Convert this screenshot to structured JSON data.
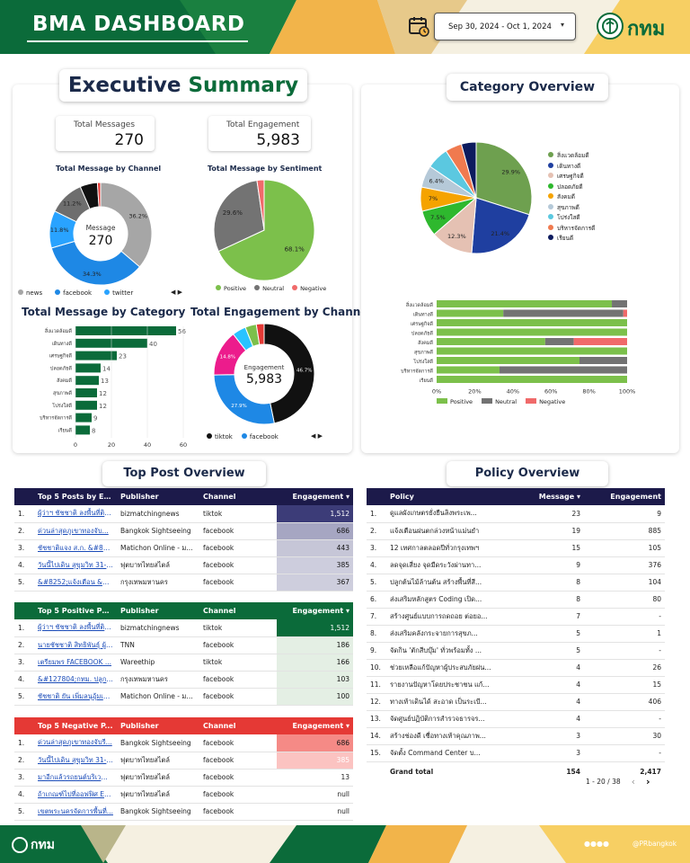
{
  "header": {
    "title": "BMA DASHBOARD",
    "date_range": "Sep 30, 2024 - Oct 1, 2024",
    "logo_text": "กทม"
  },
  "exec": {
    "title_a": "Executive",
    "title_b": "Summary",
    "kpi1": {
      "label": "Total Messages",
      "value": "270"
    },
    "kpi2": {
      "label": "Total Engagement",
      "value": "5,983"
    }
  },
  "donut1": {
    "title": "Total Message by Channel",
    "center_label": "Message",
    "center_value": "270",
    "slices": [
      {
        "name": "news",
        "value": 36.2,
        "color": "#a6a6a6",
        "label": "36.2%"
      },
      {
        "name": "facebook",
        "value": 34.3,
        "color": "#1e88e5",
        "label": "34.3%"
      },
      {
        "name": "twitter",
        "value": 11.8,
        "color": "#29a3ff",
        "label": "11.8%"
      },
      {
        "name": "other1",
        "value": 11.2,
        "color": "#6e6e6e",
        "label": "11.2%"
      },
      {
        "name": "other2",
        "value": 5.5,
        "color": "#111111",
        "label": ""
      },
      {
        "name": "other3",
        "value": 1.0,
        "color": "#e53935",
        "label": ""
      }
    ],
    "legend": [
      "news",
      "facebook",
      "twitter"
    ]
  },
  "pie1": {
    "title": "Total Message by Sentiment",
    "slices": [
      {
        "name": "Positive",
        "value": 68.1,
        "color": "#7cc04b",
        "label": "68.1%"
      },
      {
        "name": "Neutral",
        "value": 29.6,
        "color": "#737373",
        "label": "29.6%"
      },
      {
        "name": "Negative",
        "value": 2.3,
        "color": "#f06a6a",
        "label": ""
      }
    ]
  },
  "bar1": {
    "title": "Total Message by Category",
    "categories": [
      "สิ่งแวดล้อมดี",
      "เดินทางดี",
      "เศรษฐกิจดี",
      "ปลอดภัยดี",
      "สังคมดี",
      "สุขภาพดี",
      "โปร่งใสดี",
      "บริหารจัดการดี",
      "เรียนดี"
    ],
    "values": [
      56,
      40,
      23,
      14,
      13,
      12,
      12,
      9,
      8
    ],
    "ticks": [
      "0",
      "20",
      "40",
      "60"
    ],
    "xmax": 60
  },
  "donut2": {
    "title": "Total Engagement by Channel",
    "center_label": "Engagement",
    "center_value": "5,983",
    "slices": [
      {
        "name": "tiktok",
        "value": 46.7,
        "color": "#111111",
        "label": "46.7%"
      },
      {
        "name": "facebook",
        "value": 27.9,
        "color": "#1e88e5",
        "label": "27.9%"
      },
      {
        "name": "other1",
        "value": 14.8,
        "color": "#ec1c8c",
        "label": "14.8%"
      },
      {
        "name": "other2",
        "value": 4.4,
        "color": "#29c3ff",
        "label": ""
      },
      {
        "name": "other3",
        "value": 3.6,
        "color": "#7cc04b",
        "label": ""
      },
      {
        "name": "other4",
        "value": 2.5,
        "color": "#e53935",
        "label": ""
      }
    ],
    "legend": [
      "tiktok",
      "facebook"
    ]
  },
  "cat": {
    "title": "Category Overview",
    "pie": [
      {
        "name": "สิ่งแวดล้อมดี",
        "value": 29.9,
        "color": "#6ea04f",
        "label": "29.9%"
      },
      {
        "name": "เดินทางดี",
        "value": 21.4,
        "color": "#1f3fa0",
        "label": "21.4%"
      },
      {
        "name": "เศรษฐกิจดี",
        "value": 12.3,
        "color": "#e5c1b3",
        "label": "12.3%"
      },
      {
        "name": "ปลอดภัยดี",
        "value": 7.5,
        "color": "#2eb82e",
        "label": "7.5%"
      },
      {
        "name": "สังคมดี",
        "value": 7.0,
        "color": "#f5a300",
        "label": "7%"
      },
      {
        "name": "สุขภาพดี",
        "value": 6.4,
        "color": "#b5c9d8",
        "label": "6.4%"
      },
      {
        "name": "โปร่งใสดี",
        "value": 6.4,
        "color": "#5bc8e0",
        "label": ""
      },
      {
        "name": "บริหารจัดการดี",
        "value": 4.8,
        "color": "#f07a4f",
        "label": ""
      },
      {
        "name": "เรียนดี",
        "value": 4.3,
        "color": "#0d1b5e",
        "label": ""
      }
    ],
    "stack": [
      {
        "cat": "สิ่งแวดล้อมดี",
        "pos": 92,
        "neu": 8,
        "neg": 0
      },
      {
        "cat": "เดินทางดี",
        "pos": 35,
        "neu": 63,
        "neg": 2
      },
      {
        "cat": "เศรษฐกิจดี",
        "pos": 100,
        "neu": 0,
        "neg": 0
      },
      {
        "cat": "ปลอดภัยดี",
        "pos": 100,
        "neu": 0,
        "neg": 0
      },
      {
        "cat": "สังคมดี",
        "pos": 57,
        "neu": 15,
        "neg": 28
      },
      {
        "cat": "สุขภาพดี",
        "pos": 100,
        "neu": 0,
        "neg": 0
      },
      {
        "cat": "โปร่งใสดี",
        "pos": 75,
        "neu": 25,
        "neg": 0
      },
      {
        "cat": "บริหารจัดการดี",
        "pos": 33,
        "neu": 67,
        "neg": 0
      },
      {
        "cat": "เรียนดี",
        "pos": 100,
        "neu": 0,
        "neg": 0
      }
    ],
    "ticks": [
      "0%",
      "20%",
      "40%",
      "60%",
      "80%",
      "100%"
    ],
    "stack_legend": [
      "Positive",
      "Neutral",
      "Negative"
    ]
  },
  "top": {
    "title": "Top Post Overview",
    "t1": {
      "cols": [
        "Top 5 Posts by En...",
        "Publisher",
        "Channel",
        "Engagement"
      ],
      "rows": [
        [
          "1.",
          "ผู้ว่าฯ ชัชชาติ ลงพื้นที่ติดตา...",
          "bizmatchingnews",
          "tiktok",
          "1,512"
        ],
        [
          "2.",
          "ด่วนล่าสุดภูเขาทองจับ...",
          "Bangkok Sightseeing",
          "facebook",
          "686"
        ],
        [
          "3.",
          "ชัชชาติแจง ส.ก. &#8216;...",
          "Matichon Online - ม...",
          "facebook",
          "443"
        ],
        [
          "4.",
          "วันนี้ไปเดิน สุขุมวิท 31-33 ...",
          "ฟุตบาทไทยสไตล์",
          "facebook",
          "385"
        ],
        [
          "5.",
          "&#8252;แจ้งเตือน &#97...",
          "กรุงเทพมหานคร",
          "facebook",
          "367"
        ]
      ]
    },
    "t2": {
      "cols": [
        "Top 5 Positive Po...",
        "Publisher",
        "Channel",
        "Engagement"
      ],
      "rows": [
        [
          "1.",
          "ผู้ว่าฯ ชัชชาติ ลงพื้นที่ติดตา...",
          "bizmatchingnews",
          "tiktok",
          "1,512"
        ],
        [
          "2.",
          "นายชัชชาติ สิทธิพันธุ์ ผู้ว่า...",
          "TNN",
          "facebook",
          "186"
        ],
        [
          "3.",
          "เตรียมพร FACEBOOK ...",
          "Wareethip",
          "tiktok",
          "166"
        ],
        [
          "4.",
          "&#127804;กทม. ปลูกต้...",
          "กรุงเทพมหานคร",
          "facebook",
          "103"
        ],
        [
          "5.",
          "ชัชชาติ ยัน เพิ่มลนุอุ้มเขตรั...",
          "Matichon Online - มติ...",
          "facebook",
          "100"
        ]
      ]
    },
    "t3": {
      "cols": [
        "Top 5 Negative P...",
        "Publisher",
        "Channel",
        "Engagement"
      ],
      "rows": [
        [
          "1.",
          "ด่วนล่าสุดภูเขาทองจับรี...",
          "Bangkok Sightseeing",
          "facebook",
          "686"
        ],
        [
          "2.",
          "วันนี้ไปเดิน สุขุมวิท 31-3...",
          "ฟุตบาทไทยสไตล์",
          "facebook",
          "385"
        ],
        [
          "3.",
          "มาอีกแล้วรถยนต์บริเวณ...",
          "ฟุตบาทไทยสไตล์",
          "facebook",
          "13"
        ],
        [
          "4.",
          "ถ้าเกณฑ์ไปที่ออฟฟิศ Em...",
          "ฟุตบาทไทยสไตล์",
          "facebook",
          "null"
        ],
        [
          "5.",
          "เขตพระนครจัดการพื้นที่...",
          "Bangkok Sightseeing",
          "facebook",
          "null"
        ]
      ]
    }
  },
  "policy": {
    "title": "Policy Overview",
    "cols": [
      "Policy",
      "Message",
      "Engagement"
    ],
    "rows": [
      [
        "1.",
        "ดูแลผังเกษตรยั่งยืนลิงพระเพ...",
        "23",
        "9"
      ],
      [
        "2.",
        "แจ้งเตือนฝนตกล่วงหน้าแม่นยำ",
        "19",
        "885"
      ],
      [
        "3.",
        "12 เทศกาลตลอดปีทั่วกรุงเทพฯ",
        "15",
        "105"
      ],
      [
        "4.",
        "ลดจุดเสี่ยง จุดมืดระวังผ่านทา...",
        "9",
        "376"
      ],
      [
        "5.",
        "ปลูกต้นไม้ล้านต้น สร้างพื้นที่สี...",
        "8",
        "104"
      ],
      [
        "6.",
        "ส่งเสริมหลักสูตร Coding เปิด...",
        "8",
        "80"
      ],
      [
        "7.",
        "สร้างศูนย์แบบการถดถอย ต่อยอ...",
        "7",
        "-"
      ],
      [
        "8.",
        "ส่งเสริมคลังกระจายการสุขภ...",
        "5",
        "1"
      ],
      [
        "9.",
        "จัดกิน 'ตักสีบบุ๊ม' ทั่วพร้อมทั้ง ...",
        "5",
        "-"
      ],
      [
        "10.",
        "ช่วยเหลือแก้ปัญหาผู้ประสบภัยฝน...",
        "4",
        "26"
      ],
      [
        "11.",
        "รายงานปัญหาโดยประชาชน แก้...",
        "4",
        "15"
      ],
      [
        "12.",
        "ทางเท้าเดินได้ สะอาด เป็นระเบี...",
        "4",
        "406"
      ],
      [
        "13.",
        "จัดศูนย์ปฏิบัติการสำรวจธารจร...",
        "4",
        "-"
      ],
      [
        "14.",
        "สร้างช่องดี เชื่อทางเท้าคุณภาพ...",
        "3",
        "30"
      ],
      [
        "15.",
        "จัดตั้ง Command Center บ...",
        "3",
        "-"
      ]
    ],
    "total": {
      "label": "Grand total",
      "message": "154",
      "engagement": "2,417"
    },
    "pager": "1 - 20 / 38"
  },
  "footer": {
    "logo_text": "กทม",
    "social": "@PRbangkok"
  }
}
